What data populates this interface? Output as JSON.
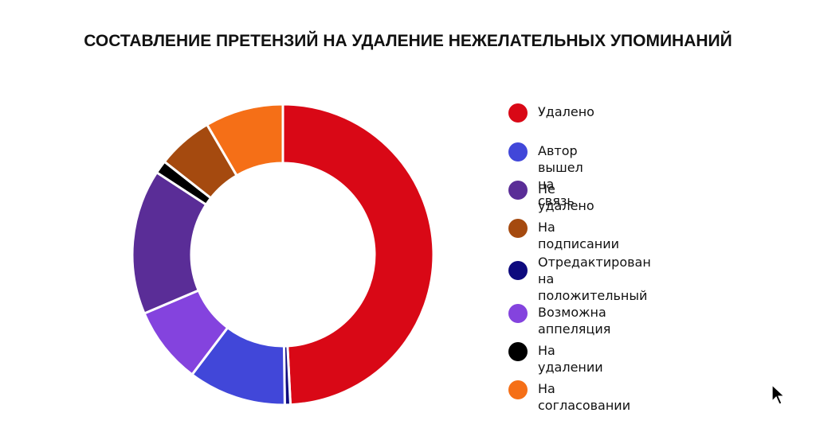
{
  "chart_data": {
    "type": "pie",
    "variant": "donut",
    "title": "СОСТАВЛЕНИЕ ПРЕТЕНЗИЙ НА УДАЛЕНИЕ НЕЖЕЛАТЕЛЬНЫХ УПОМИНАНИЙ",
    "legend_position": "right",
    "categories": [
      "Удалено",
      "Отредактирован на положительный",
      "Автор вышел на связь",
      "Возможна аппеляция",
      "Не удалено",
      "На удалении",
      "На подписании",
      "На согласовании"
    ],
    "values": [
      49.2,
      0.6,
      10.5,
      8.3,
      15.6,
      1.4,
      6.0,
      8.4
    ],
    "colors": [
      "#D90816",
      "#0E0A7E",
      "#4147D9",
      "#8443DE",
      "#5A2D97",
      "#000000",
      "#A54A0F",
      "#F56F17"
    ],
    "unit": "percent (estimated)"
  },
  "legend": [
    {
      "label": "Удалено",
      "color": "#D90816"
    },
    {
      "label": "Автор вышел на связь",
      "color": "#4147D9"
    },
    {
      "label": "Не удалено",
      "color": "#5A2D97"
    },
    {
      "label": "На подписании",
      "color": "#A54A0F"
    },
    {
      "label": "Отредактирован\nна положительный",
      "color": "#0E0A7E"
    },
    {
      "label": "Возможна аппеляция",
      "color": "#8443DE"
    },
    {
      "label": "На удалении",
      "color": "#000000"
    },
    {
      "label": "На согласовании",
      "color": "#F56F17"
    }
  ]
}
